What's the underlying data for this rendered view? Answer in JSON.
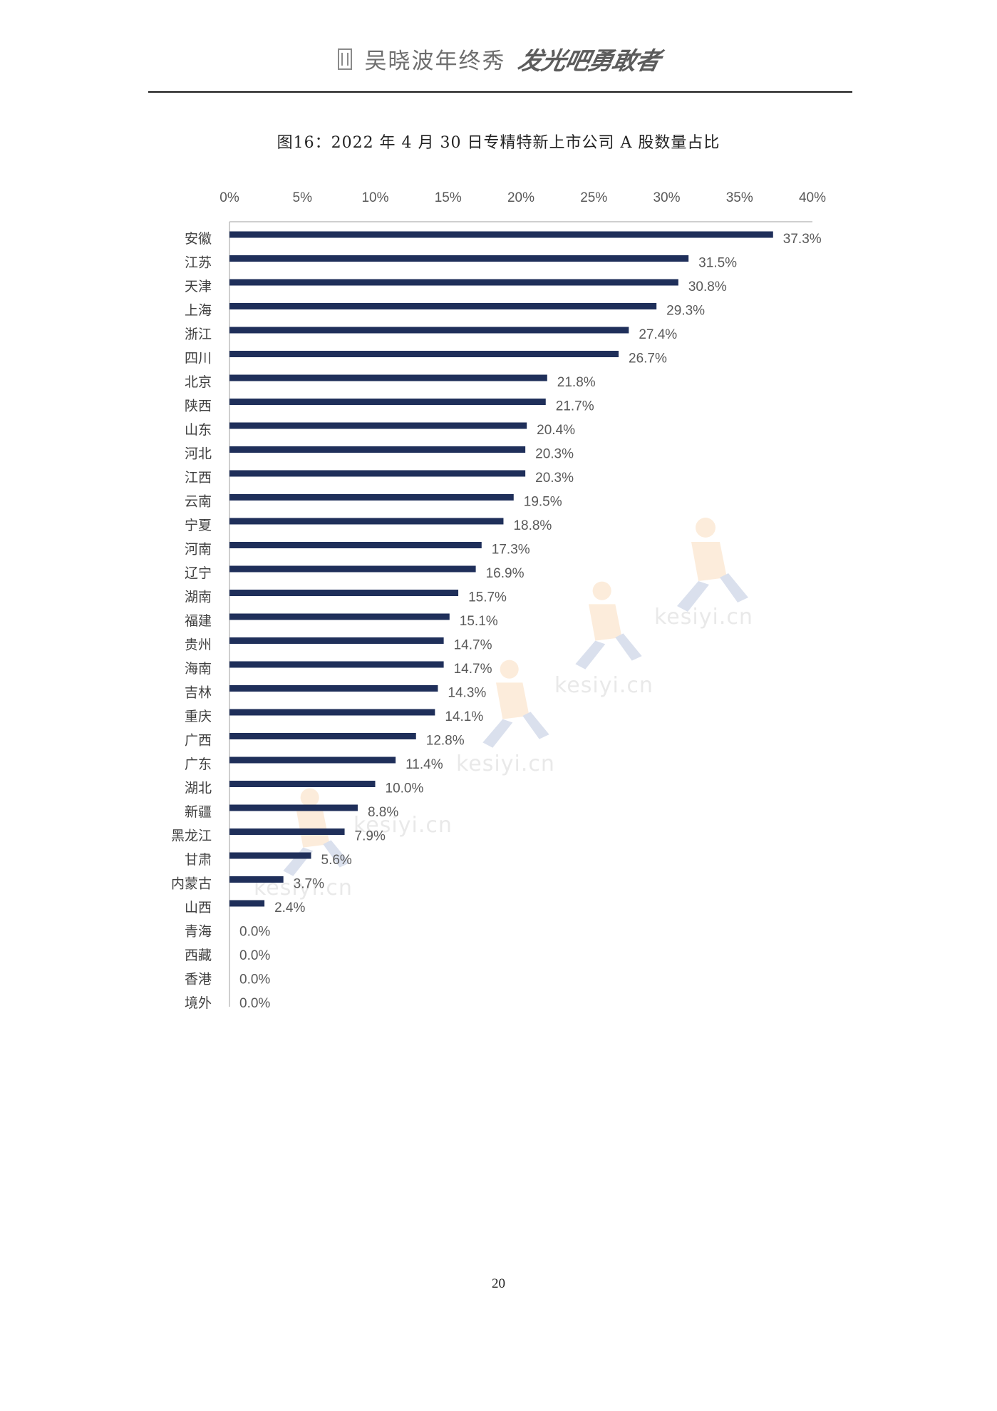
{
  "header": {
    "brand": "吴晓波年终秀",
    "brand_script": "发光吧勇敢者"
  },
  "watermark": "kesiyi.cn",
  "chart_data": {
    "type": "bar",
    "orientation": "horizontal",
    "title": "图16：2022 年 4 月 30 日专精特新上市公司 A 股数量占比",
    "xlabel": "",
    "ylabel": "",
    "xlim": [
      0,
      40
    ],
    "x_ticks": [
      "0%",
      "5%",
      "10%",
      "15%",
      "20%",
      "25%",
      "30%",
      "35%",
      "40%"
    ],
    "x_axis_position": "top",
    "grid": false,
    "legend": "none",
    "bar_color": "#1f2f5a",
    "categories": [
      "安徽",
      "江苏",
      "天津",
      "上海",
      "浙江",
      "四川",
      "北京",
      "陕西",
      "山东",
      "河北",
      "江西",
      "云南",
      "宁夏",
      "河南",
      "辽宁",
      "湖南",
      "福建",
      "贵州",
      "海南",
      "吉林",
      "重庆",
      "广西",
      "广东",
      "湖北",
      "新疆",
      "黑龙江",
      "甘肃",
      "内蒙古",
      "山西",
      "青海",
      "西藏",
      "香港",
      "境外"
    ],
    "values": [
      37.3,
      31.5,
      30.8,
      29.3,
      27.4,
      26.7,
      21.8,
      21.7,
      20.4,
      20.3,
      20.3,
      19.5,
      18.8,
      17.3,
      16.9,
      15.7,
      15.1,
      14.7,
      14.7,
      14.3,
      14.1,
      12.8,
      11.4,
      10.0,
      8.8,
      7.9,
      5.6,
      3.7,
      2.4,
      0.0,
      0.0,
      0.0,
      0.0
    ],
    "value_labels": [
      "37.3%",
      "31.5%",
      "30.8%",
      "29.3%",
      "27.4%",
      "26.7%",
      "21.8%",
      "21.7%",
      "20.4%",
      "20.3%",
      "20.3%",
      "19.5%",
      "18.8%",
      "17.3%",
      "16.9%",
      "15.7%",
      "15.1%",
      "14.7%",
      "14.7%",
      "14.3%",
      "14.1%",
      "12.8%",
      "11.4%",
      "10.0%",
      "8.8%",
      "7.9%",
      "5.6%",
      "3.7%",
      "2.4%",
      "0.0%",
      "0.0%",
      "0.0%",
      "0.0%"
    ]
  },
  "page_number": "20"
}
